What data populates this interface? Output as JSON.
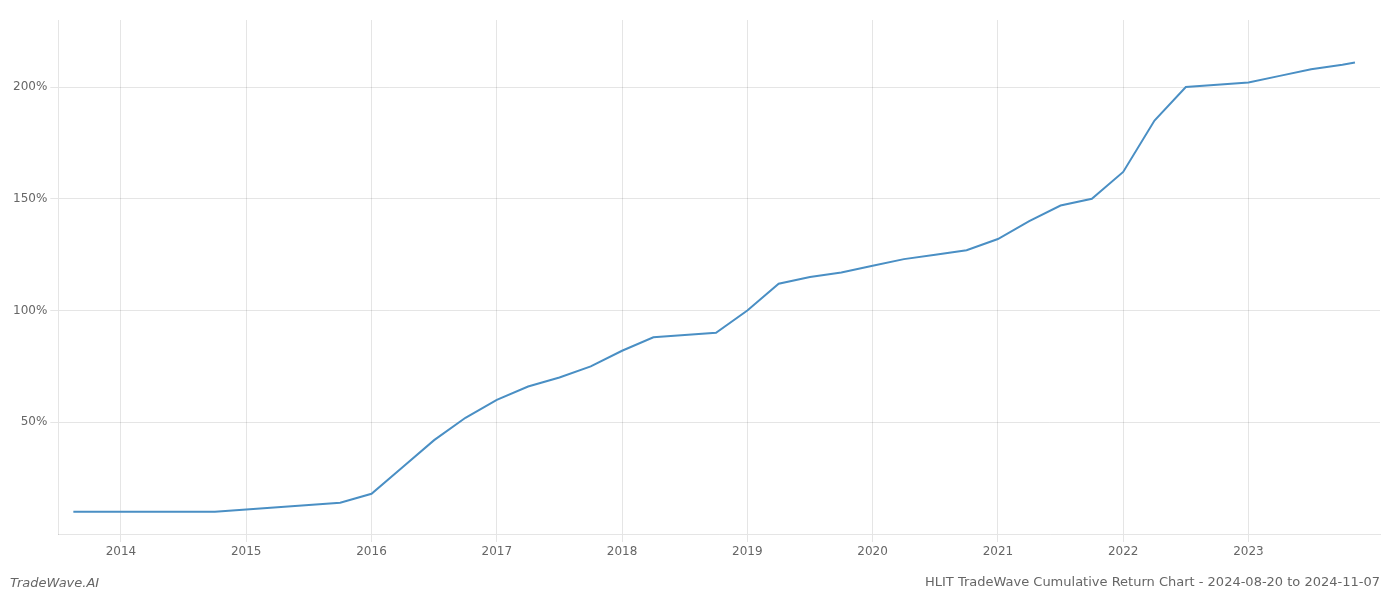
{
  "chart_data": {
    "type": "line",
    "title": "HLIT TradeWave Cumulative Return Chart - 2024-08-20 to 2024-11-07",
    "annotations": [
      "TradeWave.AI"
    ],
    "x": [
      2013.62,
      2014.0,
      2014.25,
      2014.5,
      2014.75,
      2015.0,
      2015.25,
      2015.5,
      2015.75,
      2016.0,
      2016.25,
      2016.5,
      2016.75,
      2017.0,
      2017.25,
      2017.5,
      2017.75,
      2018.0,
      2018.25,
      2018.5,
      2018.75,
      2019.0,
      2019.25,
      2019.5,
      2019.75,
      2020.0,
      2020.25,
      2020.5,
      2020.75,
      2021.0,
      2021.25,
      2021.5,
      2021.75,
      2022.0,
      2022.25,
      2022.5,
      2022.75,
      2023.0,
      2023.25,
      2023.5,
      2023.75,
      2023.85
    ],
    "values": [
      10,
      10,
      10,
      10,
      10,
      11,
      12,
      13,
      14,
      18,
      30,
      42,
      52,
      60,
      66,
      70,
      75,
      82,
      88,
      89,
      90,
      100,
      112,
      115,
      117,
      120,
      123,
      125,
      127,
      132,
      140,
      147,
      150,
      162,
      185,
      200,
      201,
      202,
      205,
      208,
      210,
      211
    ],
    "color": "#4a8fc4",
    "xlim": [
      2013.5,
      2024.05
    ],
    "xticks": [
      2014,
      2015,
      2016,
      2017,
      2018,
      2019,
      2020,
      2021,
      2022,
      2023
    ],
    "ylim": [
      0,
      230
    ],
    "yticks": [
      {
        "value": 50,
        "label": "50%"
      },
      {
        "value": 100,
        "label": "100%"
      },
      {
        "value": 150,
        "label": "150%"
      },
      {
        "value": 200,
        "label": "200%"
      }
    ],
    "grid": true
  }
}
